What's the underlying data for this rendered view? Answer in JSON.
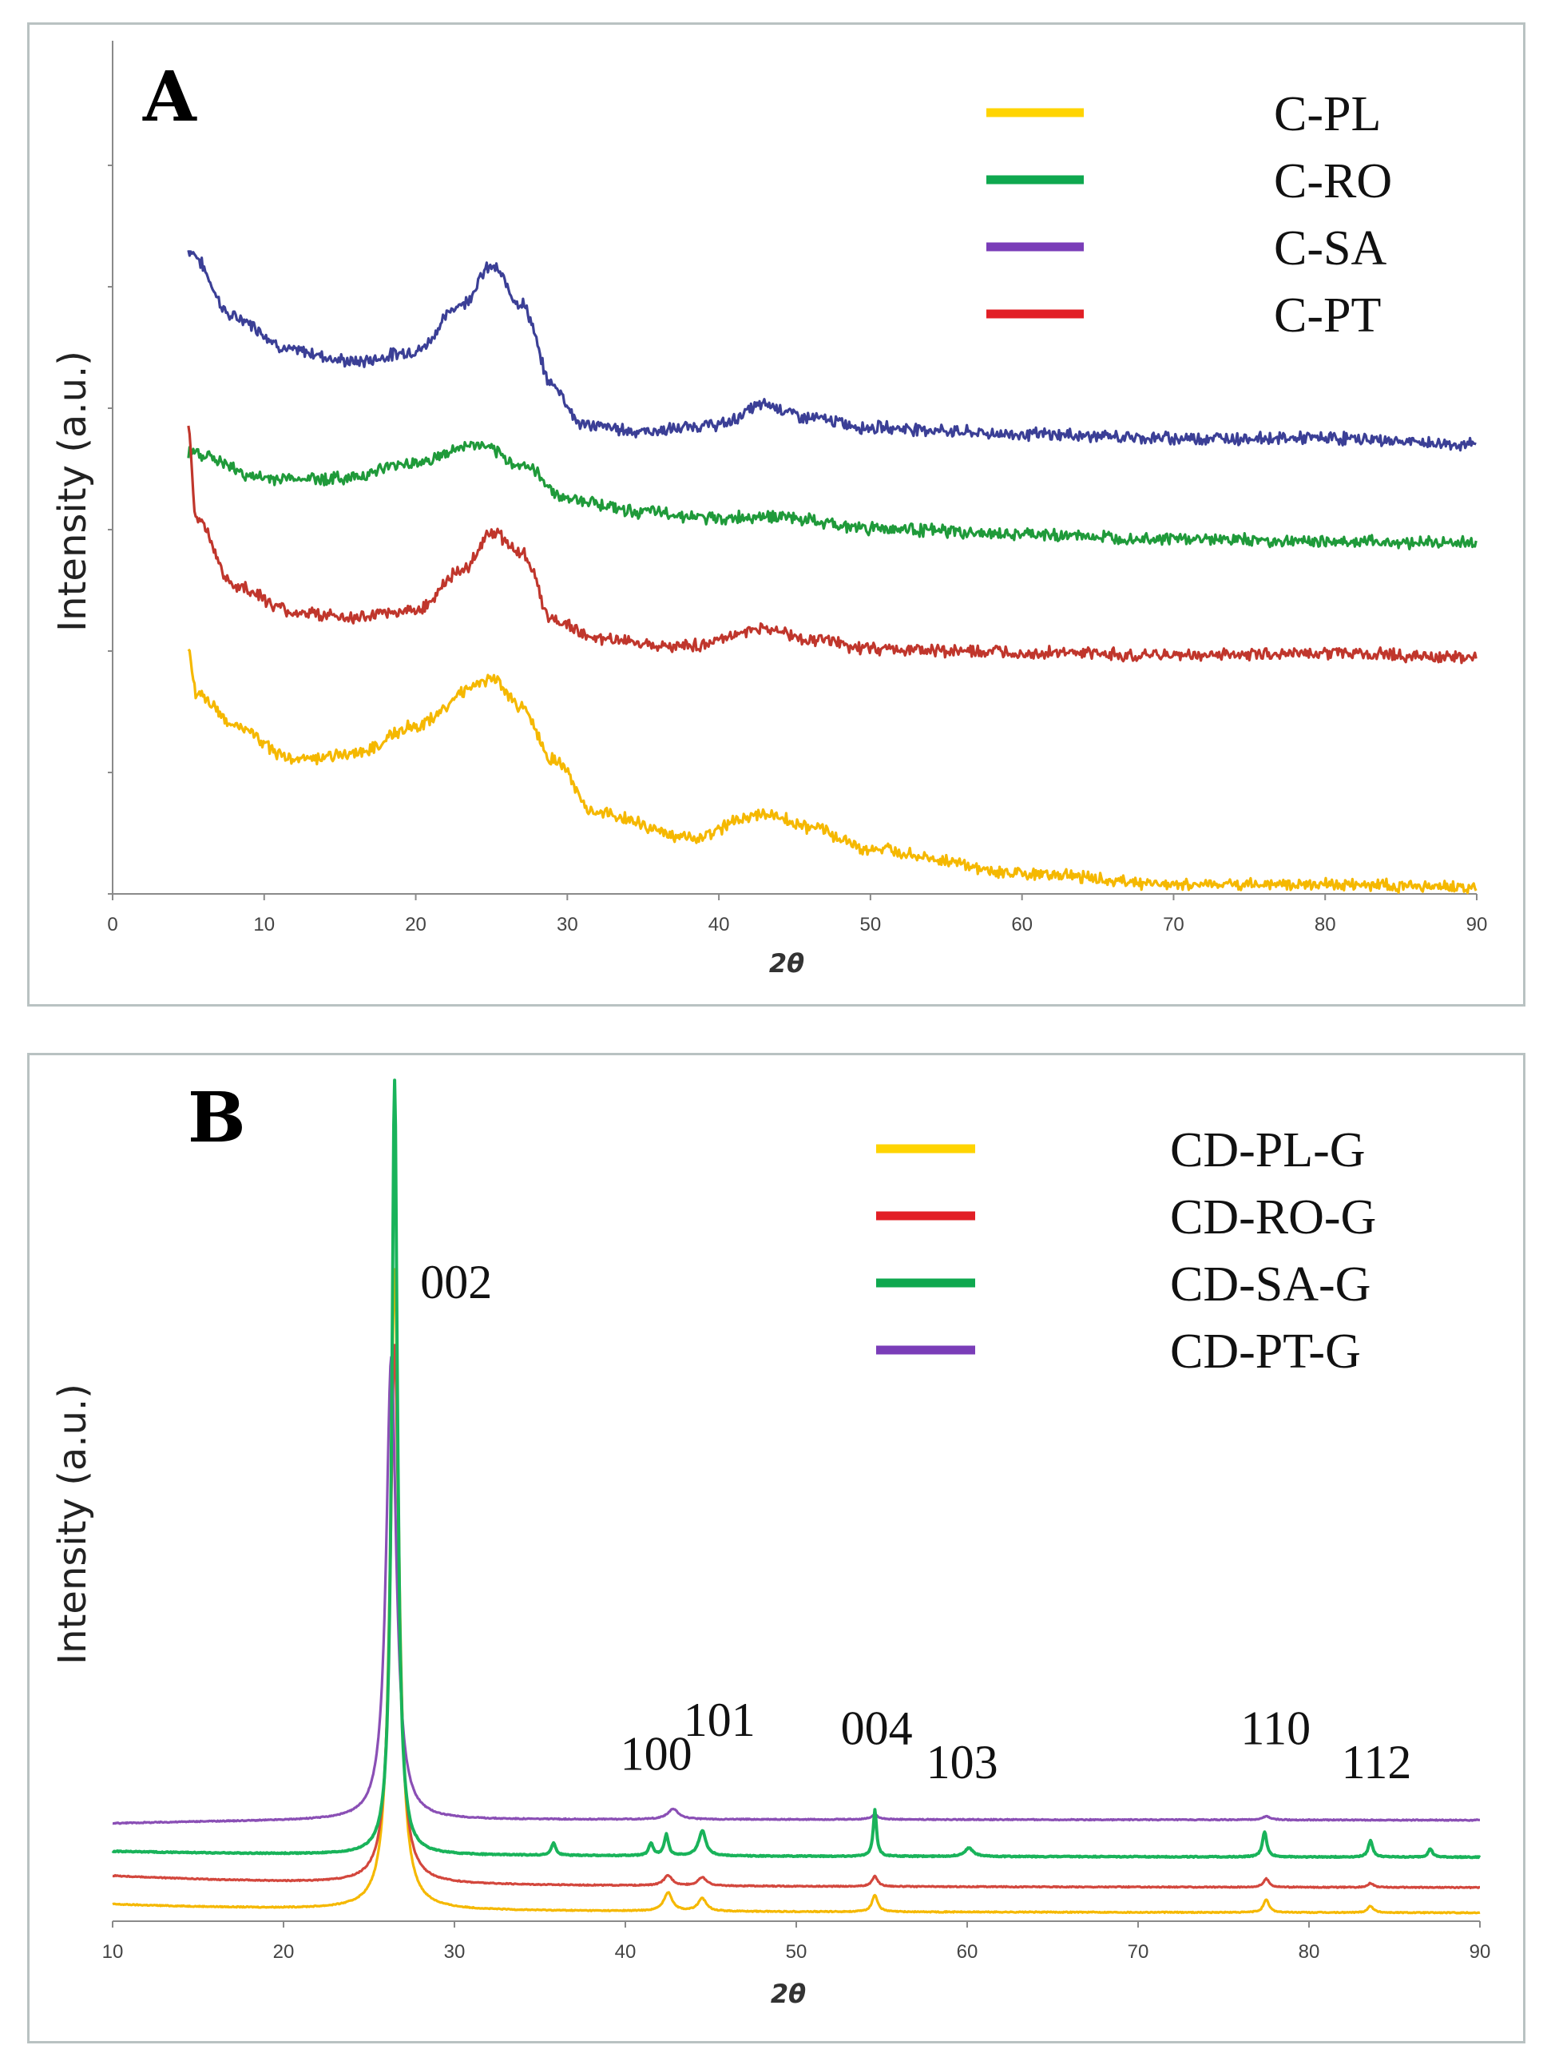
{
  "chart_data": [
    {
      "panel": "A",
      "type": "line",
      "title": "A",
      "xlabel": "2θ",
      "ylabel": "Intensity (a.u.)",
      "xlim": [
        0,
        90
      ],
      "ylim": [
        0,
        5
      ],
      "x_ticks": [
        "0",
        "10",
        "20",
        "30",
        "40",
        "50",
        "60",
        "70",
        "80",
        "90"
      ],
      "legend": [
        {
          "label": "C-PL",
          "color": "#ffd400"
        },
        {
          "label": "C-RO",
          "color": "#0fa84f"
        },
        {
          "label": "C-SA",
          "color": "#7a3db8"
        },
        {
          "label": "C-PT",
          "color": "#e21f26"
        }
      ],
      "series": [
        {
          "name": "C-SA",
          "color": "#3b3f96",
          "points": [
            [
              5,
              4.8
            ],
            [
              8,
              4.3
            ],
            [
              12,
              4.05
            ],
            [
              16,
              3.97
            ],
            [
              20,
              4.05
            ],
            [
              23,
              4.4
            ],
            [
              25,
              4.68
            ],
            [
              27,
              4.4
            ],
            [
              29,
              3.8
            ],
            [
              31,
              3.5
            ],
            [
              35,
              3.45
            ],
            [
              40,
              3.5
            ],
            [
              43,
              3.65
            ],
            [
              46,
              3.55
            ],
            [
              50,
              3.48
            ],
            [
              60,
              3.43
            ],
            [
              70,
              3.4
            ],
            [
              80,
              3.4
            ],
            [
              90,
              3.35
            ]
          ]
        },
        {
          "name": "C-RO",
          "color": "#1f9a3a",
          "points": [
            [
              5,
              3.3
            ],
            [
              10,
              3.1
            ],
            [
              15,
              3.1
            ],
            [
              20,
              3.22
            ],
            [
              24,
              3.35
            ],
            [
              27,
              3.2
            ],
            [
              30,
              2.95
            ],
            [
              35,
              2.85
            ],
            [
              40,
              2.8
            ],
            [
              43,
              2.82
            ],
            [
              50,
              2.73
            ],
            [
              60,
              2.68
            ],
            [
              70,
              2.65
            ],
            [
              80,
              2.63
            ],
            [
              90,
              2.62
            ]
          ]
        },
        {
          "name": "C-PT",
          "color": "#c0362c",
          "points": [
            [
              5,
              3.5
            ],
            [
              5.5,
              2.8
            ],
            [
              8,
              2.3
            ],
            [
              12,
              2.1
            ],
            [
              16,
              2.06
            ],
            [
              20,
              2.12
            ],
            [
              23,
              2.4
            ],
            [
              25,
              2.7
            ],
            [
              27,
              2.55
            ],
            [
              29,
              2.05
            ],
            [
              32,
              1.9
            ],
            [
              38,
              1.85
            ],
            [
              43,
              1.98
            ],
            [
              46,
              1.9
            ],
            [
              50,
              1.83
            ],
            [
              60,
              1.8
            ],
            [
              70,
              1.78
            ],
            [
              80,
              1.8
            ],
            [
              90,
              1.76
            ]
          ]
        },
        {
          "name": "C-PL",
          "color": "#f5b800",
          "points": [
            [
              5,
              1.85
            ],
            [
              5.5,
              1.5
            ],
            [
              8,
              1.25
            ],
            [
              12,
              1.0
            ],
            [
              16,
              1.05
            ],
            [
              20,
              1.25
            ],
            [
              24,
              1.55
            ],
            [
              25,
              1.6
            ],
            [
              27,
              1.4
            ],
            [
              29,
              1.0
            ],
            [
              32,
              0.6
            ],
            [
              38,
              0.42
            ],
            [
              43,
              0.6
            ],
            [
              46,
              0.5
            ],
            [
              50,
              0.33
            ],
            [
              60,
              0.15
            ],
            [
              70,
              0.07
            ],
            [
              80,
              0.07
            ],
            [
              90,
              0.05
            ]
          ]
        }
      ]
    },
    {
      "panel": "B",
      "type": "line",
      "title": "B",
      "xlabel": "2θ",
      "ylabel": "Intensity (a.u.)",
      "xlim": [
        10,
        90
      ],
      "ylim": [
        0,
        10
      ],
      "x_ticks": [
        "10",
        "20",
        "30",
        "40",
        "50",
        "60",
        "70",
        "80",
        "90"
      ],
      "legend": [
        {
          "label": "CD-PL-G",
          "color": "#ffd400"
        },
        {
          "label": "CD-RO-G",
          "color": "#e21f26"
        },
        {
          "label": "CD-SA-G",
          "color": "#0fa84f"
        },
        {
          "label": "CD-PT-G",
          "color": "#7a3db8"
        }
      ],
      "peak_labels": [
        {
          "text": "002",
          "x": 28.0,
          "y": 7.4
        },
        {
          "text": "100",
          "x": 39.7,
          "y": 1.8
        },
        {
          "text": "101",
          "x": 43.4,
          "y": 2.2
        },
        {
          "text": "004",
          "x": 52.6,
          "y": 2.1
        },
        {
          "text": "103",
          "x": 57.6,
          "y": 1.7
        },
        {
          "text": "110",
          "x": 76.0,
          "y": 2.1
        },
        {
          "text": "112",
          "x": 81.9,
          "y": 1.7
        }
      ],
      "series": [
        {
          "name": "CD-PL-G",
          "color": "#f5b800",
          "baseline": 0.12,
          "start_offset": 0.08,
          "peaks": [
            [
              26.5,
              7.6,
              0.3
            ],
            [
              42.5,
              0.22,
              0.3
            ],
            [
              44.5,
              0.15,
              0.3
            ],
            [
              54.6,
              0.2,
              0.2
            ],
            [
              77.5,
              0.15,
              0.2
            ],
            [
              83.6,
              0.08,
              0.2
            ]
          ]
        },
        {
          "name": "CD-RO-G",
          "color": "#d3473d",
          "baseline": 0.42,
          "start_offset": 0.12,
          "peaks": [
            [
              26.5,
              6.4,
              0.3
            ],
            [
              42.5,
              0.12,
              0.3
            ],
            [
              44.5,
              0.1,
              0.3
            ],
            [
              54.6,
              0.12,
              0.2
            ],
            [
              77.5,
              0.1,
              0.2
            ],
            [
              83.6,
              0.05,
              0.2
            ]
          ]
        },
        {
          "name": "CD-SA-G",
          "color": "#19b35a",
          "baseline": 0.78,
          "start_offset": 0.05,
          "peaks": [
            [
              26.5,
              9.2,
              0.2
            ],
            [
              35.8,
              0.15,
              0.15
            ],
            [
              41.5,
              0.15,
              0.15
            ],
            [
              42.4,
              0.25,
              0.15
            ],
            [
              44.5,
              0.3,
              0.25
            ],
            [
              54.6,
              0.55,
              0.12
            ],
            [
              60.1,
              0.1,
              0.3
            ],
            [
              77.4,
              0.3,
              0.15
            ],
            [
              83.6,
              0.2,
              0.15
            ],
            [
              87.1,
              0.1,
              0.15
            ]
          ]
        },
        {
          "name": "CD-PT-G",
          "color": "#8a4fb5",
          "baseline": 1.22,
          "start_offset": -0.06,
          "peaks": [
            [
              26.3,
              5.5,
              0.35
            ],
            [
              42.8,
              0.12,
              0.4
            ],
            [
              54.6,
              0.05,
              0.3
            ],
            [
              77.5,
              0.04,
              0.3
            ]
          ]
        }
      ]
    }
  ]
}
